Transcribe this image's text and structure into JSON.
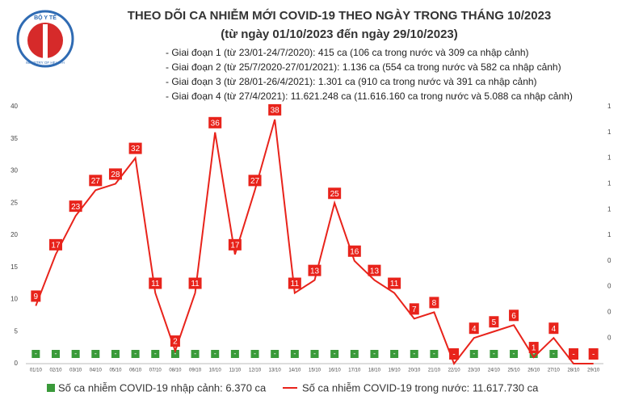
{
  "header": {
    "logo_top": "BỘ Y TẾ",
    "logo_bottom": "MINISTRY OF HEALTH"
  },
  "chart_data": {
    "type": "line",
    "title": "THEO DÕI CA NHIỄM MỚI COVID-19 THEO NGÀY TRONG THÁNG 10/2023",
    "subtitle": "(từ ngày 01/10/2023 đến ngày 29/10/2023)",
    "annotations": [
      "- Giai đoạn 1 (từ 23/01-24/7/2020): 415 ca (106 ca trong nước và 309 ca nhập cảnh)",
      "- Giai đoạn 2 (từ 25/7/2020-27/01/2021): 1.136 ca (554 ca trong nước và 582 ca nhập cảnh)",
      "- Giai đoạn 3 (từ 28/01-26/4/2021): 1.301 ca (910 ca trong nước và 391 ca nhập cảnh)",
      "- Giai đoạn 4 (từ 27/4/2021): 11.621.248 ca (11.616.160 ca trong nước và 5.088 ca nhập cảnh)"
    ],
    "categories": [
      "01/10",
      "02/10",
      "03/10",
      "04/10",
      "05/10",
      "06/10",
      "07/10",
      "08/10",
      "09/10",
      "10/10",
      "11/10",
      "12/10",
      "13/10",
      "14/10",
      "15/10",
      "16/10",
      "17/10",
      "18/10",
      "19/10",
      "20/10",
      "21/10",
      "22/10",
      "23/10",
      "24/10",
      "25/10",
      "26/10",
      "27/10",
      "28/10",
      "29/10"
    ],
    "series": [
      {
        "name": "Số ca nhiễm COVID-19 nhập cảnh: 6.370 ca",
        "color": "#3a9a3a",
        "axis": "y2",
        "values": [
          0,
          0,
          0,
          0,
          0,
          0,
          0,
          0,
          0,
          0,
          0,
          0,
          0,
          0,
          0,
          0,
          0,
          0,
          0,
          0,
          0,
          0,
          0,
          0,
          0,
          0,
          0,
          0,
          0
        ],
        "value_labels": [
          "-",
          "-",
          "-",
          "-",
          "-",
          "-",
          "-",
          "-",
          "-",
          "-",
          "-",
          "-",
          "-",
          "-",
          "-",
          "-",
          "-",
          "-",
          "-",
          "-",
          "-",
          "-",
          "-",
          "-",
          "-",
          "-",
          "-",
          "-",
          "-"
        ]
      },
      {
        "name": "Số ca nhiễm COVID-19 trong nước: 11.617.730 ca",
        "color": "#e8231b",
        "values": [
          9,
          17,
          23,
          27,
          28,
          32,
          11,
          2,
          11,
          36,
          17,
          27,
          38,
          11,
          13,
          25,
          16,
          13,
          11,
          7,
          8,
          0,
          4,
          5,
          6,
          1,
          4,
          0,
          0
        ],
        "value_labels": [
          "9",
          "17",
          "23",
          "27",
          "28",
          "32",
          "11",
          "2",
          "11",
          "36",
          "17",
          "27",
          "38",
          "11",
          "13",
          "25",
          "16",
          "13",
          "11",
          "7",
          "8",
          "-",
          "4",
          "5",
          "6",
          "1",
          "4",
          "-",
          "-"
        ]
      }
    ],
    "ylim": [
      0,
      40
    ],
    "yticks": [
      0,
      5,
      10,
      15,
      20,
      25,
      30,
      35,
      40
    ],
    "y2lim": [
      0,
      1
    ],
    "y2ticks": [
      {
        "value": 0.1,
        "label": "0"
      },
      {
        "value": 0.2,
        "label": "0"
      },
      {
        "value": 0.3,
        "label": "0"
      },
      {
        "value": 0.4,
        "label": "0"
      },
      {
        "value": 0.5,
        "label": "1"
      },
      {
        "value": 0.6,
        "label": "1"
      },
      {
        "value": 0.7,
        "label": "1"
      },
      {
        "value": 0.8,
        "label": "1"
      },
      {
        "value": 0.9,
        "label": "1"
      },
      {
        "value": 1.0,
        "label": "1"
      }
    ],
    "grid": false
  }
}
